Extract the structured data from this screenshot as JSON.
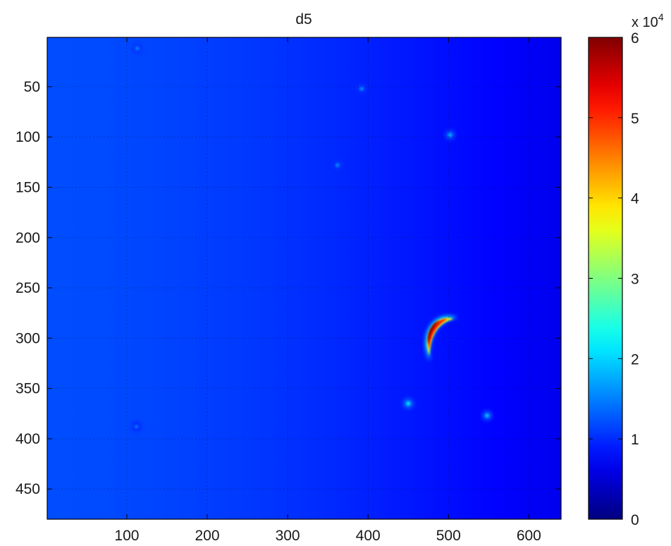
{
  "chart_data": {
    "type": "heatmap",
    "title": "d5",
    "xlabel": "",
    "ylabel": "",
    "xlim": [
      1,
      640
    ],
    "ylim": [
      1,
      480
    ],
    "y_reversed": true,
    "grid": true,
    "colormap": "jet",
    "x_ticks": [
      100,
      200,
      300,
      400,
      500,
      600
    ],
    "x_tick_labels": [
      "100",
      "200",
      "300",
      "400",
      "500",
      "600"
    ],
    "y_ticks": [
      50,
      100,
      150,
      200,
      250,
      300,
      350,
      400,
      450
    ],
    "y_tick_labels": [
      "50",
      "100",
      "150",
      "200",
      "250",
      "300",
      "350",
      "400",
      "450"
    ],
    "background_gradient": {
      "left_value": 12000,
      "right_value": 6500
    },
    "features": [
      {
        "kind": "crescent",
        "x": 487,
        "y": 302,
        "peak_value": 60000
      },
      {
        "kind": "spot",
        "x": 450,
        "y": 365,
        "peak_value": 20000
      },
      {
        "kind": "spot",
        "x": 548,
        "y": 377,
        "peak_value": 18000
      },
      {
        "kind": "spot",
        "x": 502,
        "y": 98,
        "peak_value": 17000
      },
      {
        "kind": "spot",
        "x": 362,
        "y": 128,
        "peak_value": 15000
      },
      {
        "kind": "spot",
        "x": 392,
        "y": 52,
        "peak_value": 15000
      },
      {
        "kind": "spot",
        "x": 113,
        "y": 12,
        "peak_value": 15000
      },
      {
        "kind": "spot",
        "x": 112,
        "y": 388,
        "peak_value": 14000
      }
    ],
    "colorbar": {
      "range": [
        0,
        60000
      ],
      "ticks": [
        0,
        10000,
        20000,
        30000,
        40000,
        50000,
        60000
      ],
      "tick_labels": [
        "0",
        "1",
        "2",
        "3",
        "4",
        "5",
        "6"
      ],
      "exponent_label": "x 10",
      "exponent_power": "4"
    }
  }
}
